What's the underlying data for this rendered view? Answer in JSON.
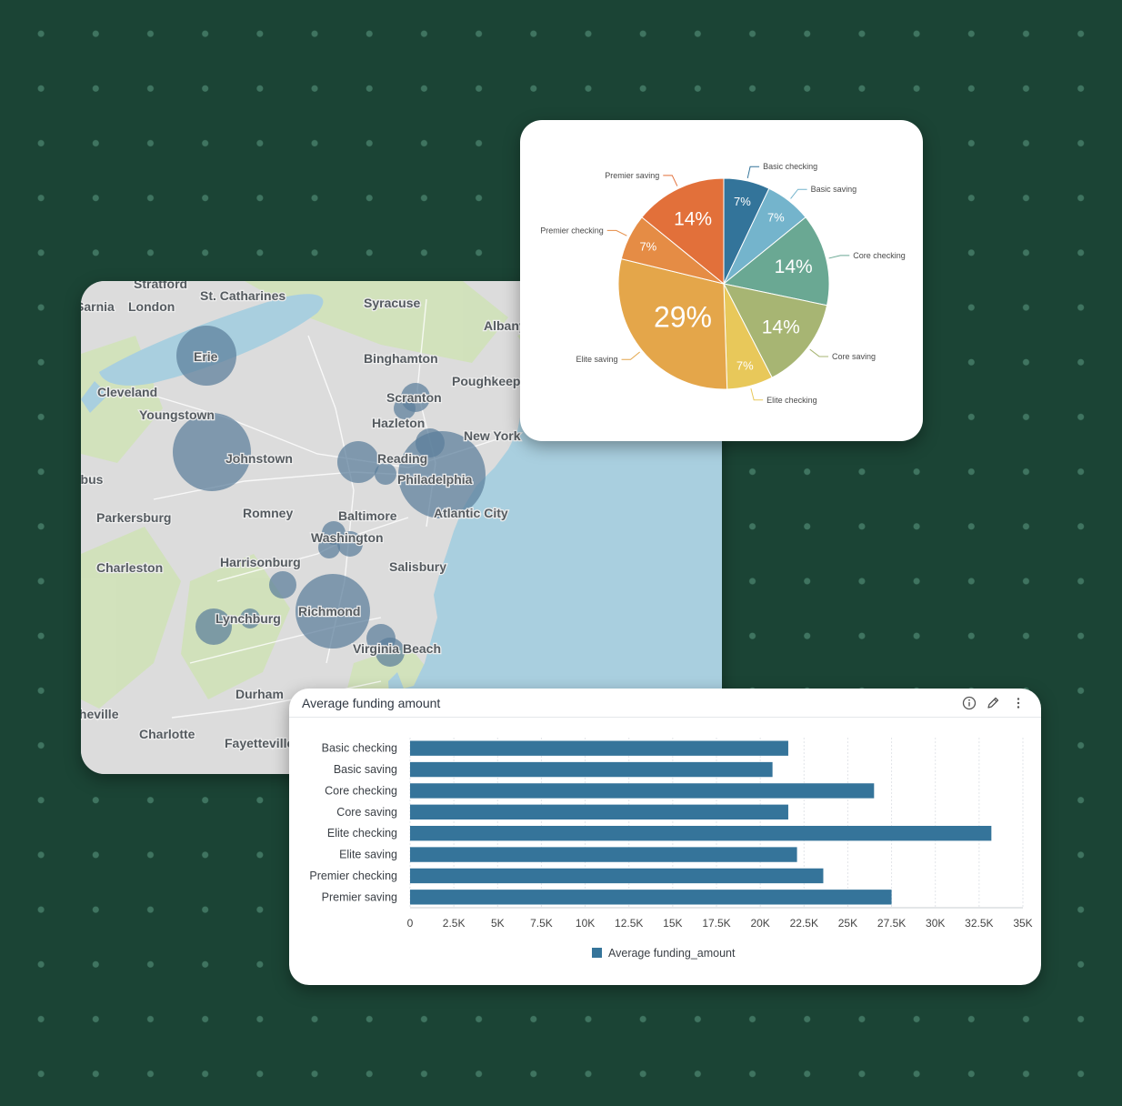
{
  "map": {
    "places": [
      "Stratford",
      "St. Catharines",
      "Sarnia",
      "London",
      "Syracuse",
      "Albany",
      "Erie",
      "Binghamton",
      "Poughkeepsie",
      "Cleveland",
      "Scranton",
      "Youngstown",
      "Hazleton",
      "New York",
      "Johnstown",
      "Reading",
      "Philadelphia",
      "Columbus",
      "Parkersburg",
      "Romney",
      "Baltimore",
      "Atlantic City",
      "Washington",
      "Charleston",
      "Harrisonburg",
      "Salisbury",
      "Richmond",
      "Lynchburg",
      "Virginia Beach",
      "Durham",
      "Asheville",
      "Charlotte",
      "Fayetteville"
    ],
    "bubble_color": "#5b7e9b"
  },
  "chart_data": [
    {
      "type": "pie",
      "categories": [
        "Basic checking",
        "Basic saving",
        "Core checking",
        "Core saving",
        "Elite checking",
        "Elite saving",
        "Premier checking",
        "Premier saving"
      ],
      "values": [
        7,
        7,
        14,
        14,
        7,
        29,
        7,
        14
      ],
      "labels": [
        "7%",
        "7%",
        "14%",
        "14%",
        "7%",
        "29%",
        "7%",
        "14%"
      ],
      "colors": [
        "#33749a",
        "#74b4cc",
        "#6aa893",
        "#a7b573",
        "#e8c85a",
        "#e4a64a",
        "#e58c45",
        "#e2703a"
      ]
    },
    {
      "type": "bar",
      "orientation": "horizontal",
      "title": "Average funding amount",
      "categories": [
        "Basic checking",
        "Basic saving",
        "Core checking",
        "Core saving",
        "Elite checking",
        "Elite saving",
        "Premier checking",
        "Premier saving"
      ],
      "series": [
        {
          "name": "Average funding_amount",
          "values": [
            21600,
            20700,
            26500,
            21600,
            33200,
            22100,
            23600,
            27500
          ]
        }
      ],
      "xticks": [
        "0",
        "2.5K",
        "5K",
        "7.5K",
        "10K",
        "12.5K",
        "15K",
        "17.5K",
        "20K",
        "22.5K",
        "25K",
        "27.5K",
        "30K",
        "32.5K",
        "35K"
      ],
      "xlim": [
        0,
        35000
      ],
      "grid": true,
      "legend_position": "bottom",
      "color": "#35749a"
    }
  ],
  "icons": {
    "info": "info-icon",
    "edit": "pencil-icon",
    "menu": "more-vertical-icon"
  }
}
